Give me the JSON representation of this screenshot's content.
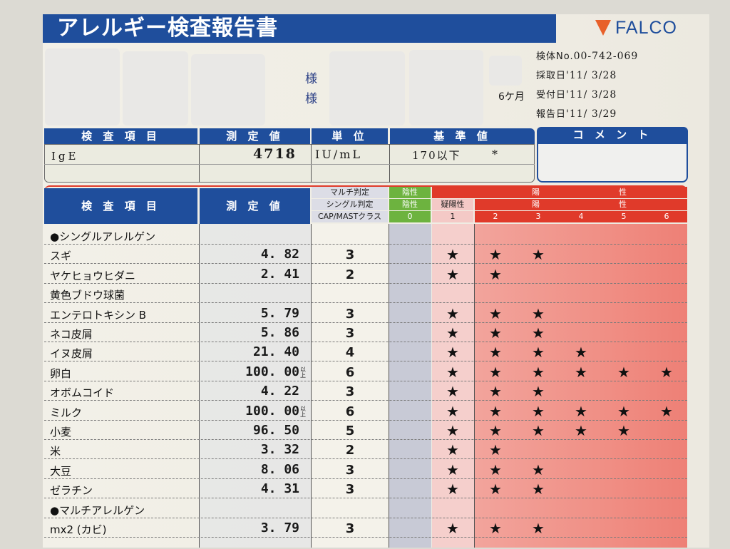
{
  "title": "アレルギー検査報告書",
  "logo_text": "FALCO",
  "patient": {
    "honorific_1": "様",
    "honorific_2": "様",
    "age": "6ケ月"
  },
  "specimen": {
    "no_label": "検体No.",
    "no_value": "00-742-069",
    "collected_label": "採取日",
    "collected_value": "'11/ 3/28",
    "received_label": "受付日",
    "received_value": "'11/ 3/28",
    "reported_label": "報告日",
    "reported_value": "'11/ 3/29"
  },
  "summary": {
    "headers": {
      "item": "検 査 項 目",
      "value": "測 定 値",
      "unit": "単 位",
      "reference": "基 準 値",
      "comment": "コ メ ン ト"
    },
    "row": {
      "item": "IgE",
      "value": "4718",
      "unit": "IU/mL",
      "reference": "170以下",
      "flag": "*",
      "comment": ""
    }
  },
  "table": {
    "headers": {
      "item": "検 査 項 目",
      "value": "測 定 値",
      "multi": "マルチ判定",
      "single": "シングル判定",
      "cap": "CAP/MASTクラス",
      "neg_multi": "陰性",
      "neg_single": "陰性",
      "neg_class": "0",
      "pos_multi_a": "陽",
      "pos_multi_b": "性",
      "equivocal": "疑陽性",
      "pos_single_a": "陽",
      "pos_single_b": "性",
      "classes": [
        "1",
        "2",
        "3",
        "4",
        "5",
        "6"
      ]
    },
    "colors": {
      "header_blue": "#1f4e9c",
      "negative_green": "#6db33f",
      "positive_red": "#e03a2a",
      "equivocal_pink": "#f4c9c6"
    },
    "star_symbol": "★",
    "rows": [
      {
        "name": "●シングルアレルゲン",
        "value": "",
        "cls": "",
        "stars": 0
      },
      {
        "name": "スギ",
        "value": "4. 82",
        "cls": "3",
        "stars": 3
      },
      {
        "name": "ヤケヒョウヒダニ",
        "value": "2. 41",
        "cls": "2",
        "stars": 2
      },
      {
        "name": "黄色ブドウ球菌",
        "value": "",
        "cls": "",
        "stars": 0
      },
      {
        "name": "エンテロトキシン B",
        "value": "5. 79",
        "cls": "3",
        "stars": 3
      },
      {
        "name": "ネコ皮屑",
        "value": "5. 86",
        "cls": "3",
        "stars": 3
      },
      {
        "name": "イヌ皮屑",
        "value": "21. 40",
        "cls": "4",
        "stars": 4
      },
      {
        "name": "卵白",
        "value": "100. 00",
        "over": "以上",
        "cls": "6",
        "stars": 6
      },
      {
        "name": "オボムコイド",
        "value": "4. 22",
        "cls": "3",
        "stars": 3
      },
      {
        "name": "ミルク",
        "value": "100. 00",
        "over": "以上",
        "cls": "6",
        "stars": 6
      },
      {
        "name": "小麦",
        "value": "96. 50",
        "cls": "5",
        "stars": 5
      },
      {
        "name": "米",
        "value": "3. 32",
        "cls": "2",
        "stars": 2
      },
      {
        "name": "大豆",
        "value": "8. 06",
        "cls": "3",
        "stars": 3
      },
      {
        "name": "ゼラチン",
        "value": "4. 31",
        "cls": "3",
        "stars": 3
      },
      {
        "name": "●マルチアレルゲン",
        "value": "",
        "cls": "",
        "stars": 0
      },
      {
        "name": "mx2 (カビ)",
        "value": "3. 79",
        "cls": "3",
        "stars": 3
      }
    ]
  }
}
